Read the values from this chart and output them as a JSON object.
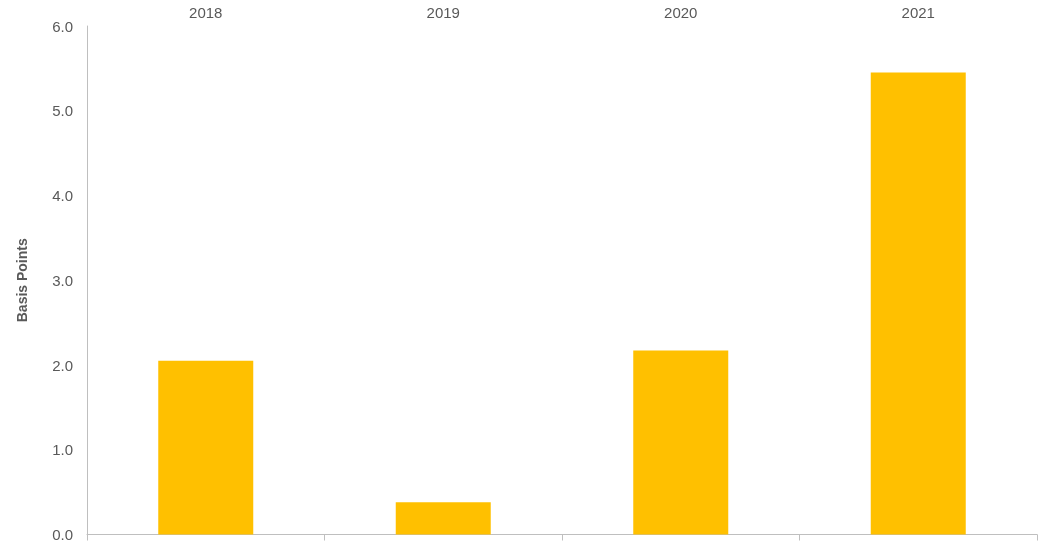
{
  "chart_data": {
    "type": "bar",
    "ylabel": "Basis Points",
    "categories": [
      "2018",
      "2019",
      "2020",
      "2021"
    ],
    "values": [
      2.05,
      0.38,
      2.17,
      5.45
    ],
    "color": "#ffc000",
    "ylim": [
      0,
      6
    ],
    "yticks": [
      {
        "value": 0,
        "label": "0.0"
      },
      {
        "value": 1,
        "label": "1.0"
      },
      {
        "value": 2,
        "label": "2.0"
      },
      {
        "value": 3,
        "label": "3.0"
      },
      {
        "value": 4,
        "label": "4.0"
      },
      {
        "value": 5,
        "label": "5.0"
      },
      {
        "value": 6,
        "label": "6.0"
      }
    ],
    "grid": false
  }
}
